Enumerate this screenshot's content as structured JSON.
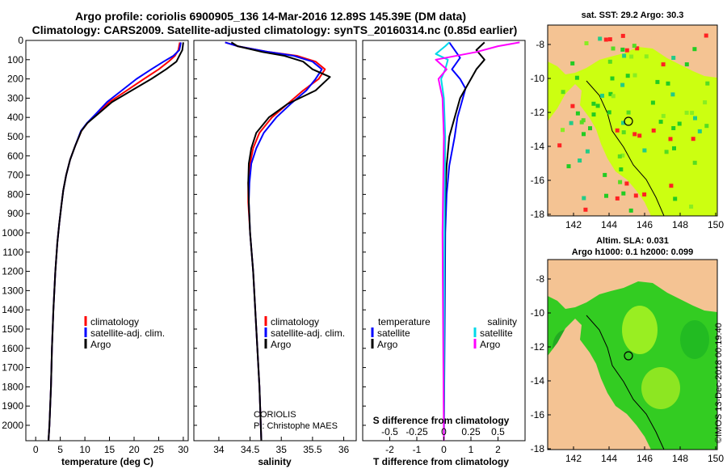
{
  "titles": {
    "line1": "Argo profile: coriolis 6900905_136 14-Mar-2016 12.89S 145.39E (DM data)",
    "line2": "Climatology: CARS2009. Satellite-adjusted climatology: synTS_20160314.nc (0.85d earlier)"
  },
  "colors": {
    "climatology": "#ff0000",
    "satellite": "#0000ff",
    "argo": "#000000",
    "salinity_satellite": "#00d8e8",
    "salinity_argo": "#ff00ff",
    "land": "#f4c393",
    "sst_field": "#ccff11",
    "sla_field": "#33cc22"
  },
  "chart_data": [
    {
      "type": "line",
      "name": "temperature-profile",
      "xlabel": "temperature (deg C)",
      "ylabel": "depth",
      "xlim": [
        -2,
        31
      ],
      "ylim": [
        2080,
        0
      ],
      "xticks": [
        0,
        5,
        10,
        15,
        20,
        25,
        30
      ],
      "yticks": [
        0,
        100,
        200,
        300,
        400,
        500,
        600,
        700,
        800,
        900,
        1000,
        1100,
        1200,
        1300,
        1400,
        1500,
        1600,
        1700,
        1800,
        1900,
        2000
      ],
      "legend": [
        "climatology",
        "satellite-adj. clim.",
        "Argo"
      ],
      "series": [
        {
          "name": "climatology",
          "color": "#ff0000",
          "x": [
            29.3,
            29.0,
            28.3,
            27.0,
            25.0,
            22.0,
            18.5,
            15.0,
            12.5,
            10.5,
            9.3,
            8.0,
            7.0,
            6.2,
            5.6,
            5.2,
            4.8,
            4.4,
            4.0,
            3.6,
            3.3,
            3.1,
            2.8,
            2.6
          ],
          "y": [
            10,
            50,
            80,
            110,
            150,
            200,
            260,
            320,
            380,
            430,
            470,
            550,
            620,
            700,
            780,
            860,
            950,
            1050,
            1200,
            1400,
            1600,
            1800,
            2000,
            2080
          ]
        },
        {
          "name": "satellite-adj. clim.",
          "color": "#0000ff",
          "x": [
            29.5,
            29.2,
            28.0,
            26.0,
            23.5,
            20.5,
            17.5,
            14.5,
            12.3,
            10.4,
            9.2,
            8.0,
            7.0,
            6.2,
            5.6,
            5.2,
            4.8,
            4.4,
            4.0,
            3.6,
            3.3,
            3.1,
            2.8,
            2.6
          ],
          "y": [
            10,
            50,
            80,
            110,
            150,
            200,
            260,
            320,
            380,
            430,
            470,
            550,
            620,
            700,
            780,
            860,
            950,
            1050,
            1200,
            1400,
            1600,
            1800,
            2000,
            2080
          ]
        },
        {
          "name": "Argo",
          "color": "#000000",
          "x": [
            30.0,
            29.8,
            29.2,
            28.6,
            26.5,
            23.5,
            19.5,
            15.5,
            12.8,
            10.5,
            9.3,
            8.0,
            7.0,
            6.2,
            5.6,
            5.2,
            4.8,
            4.4,
            4.0,
            3.6,
            3.3,
            3.1,
            2.8,
            2.6
          ],
          "y": [
            10,
            50,
            80,
            110,
            150,
            200,
            260,
            320,
            380,
            430,
            470,
            550,
            620,
            700,
            780,
            860,
            950,
            1050,
            1200,
            1400,
            1600,
            1800,
            2000,
            2080
          ]
        }
      ]
    },
    {
      "type": "line",
      "name": "salinity-profile",
      "xlabel": "salinity",
      "xlim": [
        33.6,
        36.2
      ],
      "ylim": [
        2080,
        0
      ],
      "xticks": [
        34,
        34.5,
        35,
        35.5,
        36
      ],
      "legend": [
        "climatology",
        "satellite-adj. clim.",
        "Argo"
      ],
      "annotation": [
        "CORIOLIS",
        "PI: Christophe MAES"
      ],
      "series": [
        {
          "name": "climatology",
          "color": "#ff0000",
          "x": [
            34.1,
            34.3,
            34.8,
            35.25,
            35.55,
            35.7,
            35.6,
            35.35,
            35.1,
            34.85,
            34.65,
            34.55,
            34.5,
            34.47,
            34.47,
            34.5,
            34.55,
            34.6,
            34.65,
            34.68
          ],
          "y": [
            10,
            30,
            60,
            80,
            110,
            150,
            200,
            260,
            330,
            400,
            480,
            560,
            640,
            740,
            840,
            1000,
            1200,
            1500,
            1800,
            2080
          ]
        },
        {
          "name": "satellite-adj. clim.",
          "color": "#0000ff",
          "x": [
            34.1,
            34.3,
            34.8,
            35.2,
            35.5,
            35.65,
            35.55,
            35.4,
            35.15,
            34.92,
            34.72,
            34.6,
            34.52,
            34.49,
            34.48,
            34.5,
            34.55,
            34.6,
            34.65,
            34.68
          ],
          "y": [
            10,
            30,
            60,
            80,
            110,
            150,
            200,
            260,
            330,
            400,
            480,
            560,
            640,
            740,
            840,
            1000,
            1200,
            1500,
            1800,
            2080
          ]
        },
        {
          "name": "Argo",
          "color": "#000000",
          "x": [
            34.2,
            34.3,
            34.7,
            35.05,
            35.35,
            35.5,
            35.78,
            35.55,
            35.1,
            34.8,
            34.6,
            34.52,
            34.48,
            34.47,
            34.48,
            34.5,
            34.55,
            34.6,
            34.65,
            34.68
          ],
          "y": [
            10,
            30,
            60,
            80,
            110,
            150,
            190,
            260,
            330,
            400,
            480,
            560,
            640,
            740,
            840,
            1000,
            1200,
            1500,
            1800,
            2080
          ]
        }
      ]
    },
    {
      "type": "line",
      "name": "difference-profile",
      "xlabel": "T difference from climatology",
      "xlabel2": "S difference from climatology",
      "xlim": [
        -3,
        3
      ],
      "ylim": [
        2080,
        0
      ],
      "xticks": [
        -2,
        -1,
        0,
        1,
        2
      ],
      "xticks_salinity": [
        "-0.5",
        "-0.25",
        "0",
        "0.25",
        "0.5"
      ],
      "legend_temperature": {
        "heading": "temperature",
        "items": [
          "satellite",
          "Argo"
        ]
      },
      "legend_salinity": {
        "heading": "salinity",
        "items": [
          "satellite",
          "Argo"
        ]
      },
      "series": [
        {
          "name": "temperature satellite",
          "color": "#0000ff",
          "x": [
            0.2,
            0.4,
            0.6,
            0.3,
            0.6,
            0.8,
            0.7,
            0.5,
            0.4,
            0.2,
            0.1,
            0.05,
            0.03,
            0.0
          ],
          "y": [
            10,
            50,
            90,
            150,
            200,
            250,
            300,
            400,
            500,
            650,
            800,
            1000,
            1500,
            2080
          ]
        },
        {
          "name": "temperature Argo",
          "color": "#000000",
          "x": [
            1.5,
            1.2,
            1.5,
            1.2,
            1.0,
            0.8,
            0.6,
            0.4,
            0.2,
            0.1,
            0.05,
            0.03,
            0.0
          ],
          "y": [
            10,
            50,
            100,
            150,
            200,
            250,
            300,
            400,
            500,
            650,
            800,
            1000,
            2080
          ]
        },
        {
          "name": "salinity satellite",
          "color": "#00d8e8",
          "x": [
            0.2,
            0.05,
            -0.3,
            0.15,
            0.05,
            -0.1,
            0.0,
            0.05,
            0.02,
            0.0
          ],
          "y": [
            10,
            30,
            70,
            100,
            150,
            200,
            300,
            500,
            1000,
            2080
          ]
        },
        {
          "name": "salinity Argo",
          "color": "#ff00ff",
          "x": [
            2.8,
            2.0,
            1.2,
            -0.3,
            0.1,
            -0.2,
            -0.05,
            0.0,
            -0.05,
            0.0
          ],
          "y": [
            10,
            30,
            60,
            100,
            150,
            200,
            300,
            500,
            1000,
            2080
          ]
        }
      ]
    }
  ],
  "maps": [
    {
      "name": "sst-map",
      "title": "sat. SST: 29.2  Argo: 30.3",
      "xticks": [
        "142",
        "144",
        "146",
        "148",
        "150"
      ],
      "yticks": [
        "-8",
        "-10",
        "-12",
        "-14",
        "-16",
        "-18"
      ]
    },
    {
      "name": "sla-map",
      "title1": "Altim. SLA: 0.031",
      "title2": "Argo h1000: 0.1 h2000: 0.099",
      "xticks": [
        "142",
        "144",
        "146",
        "148",
        "150"
      ],
      "yticks": [
        "-8",
        "-10",
        "-12",
        "-14",
        "-16",
        "-18"
      ]
    }
  ],
  "credit": "©IMOS 13-Dec-2018 00:19:40"
}
